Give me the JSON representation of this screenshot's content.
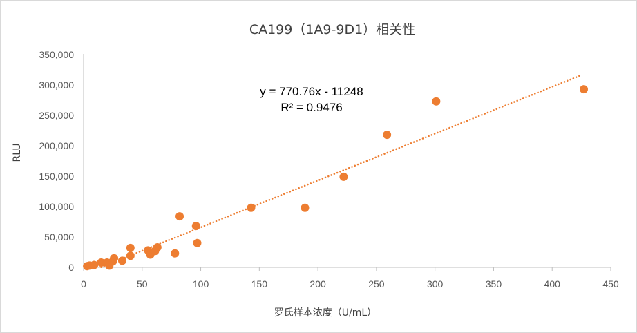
{
  "chart_data": {
    "type": "scatter",
    "title": "CA199（1A9-9D1）相关性",
    "xlabel": "罗氏样本浓度（U/mL）",
    "ylabel": "RLU",
    "xlim": [
      0,
      450
    ],
    "ylim": [
      0,
      350000
    ],
    "x_ticks": [
      "0",
      "50",
      "100",
      "150",
      "200",
      "250",
      "300",
      "350",
      "400",
      "450"
    ],
    "y_ticks": [
      "0",
      "50,000",
      "100,000",
      "150,000",
      "200,000",
      "250,000",
      "300,000",
      "350,000"
    ],
    "grid": false,
    "marker_color": "#ED7D31",
    "trendline": {
      "type": "linear",
      "slope": 770.76,
      "intercept": -11248,
      "x_range": [
        15,
        425
      ],
      "style": "dotted",
      "color": "#ED7D31",
      "equation": "y = 770.76x - 11248",
      "r2": "R² = 0.9476"
    },
    "points": [
      {
        "x": 3,
        "y": 2000
      },
      {
        "x": 5,
        "y": 3000
      },
      {
        "x": 9,
        "y": 4000
      },
      {
        "x": 15,
        "y": 8000
      },
      {
        "x": 20,
        "y": 8000
      },
      {
        "x": 22,
        "y": 3000
      },
      {
        "x": 25,
        "y": 10000
      },
      {
        "x": 26,
        "y": 15000
      },
      {
        "x": 33,
        "y": 11000
      },
      {
        "x": 40,
        "y": 19000
      },
      {
        "x": 40,
        "y": 32000
      },
      {
        "x": 55,
        "y": 28000
      },
      {
        "x": 57,
        "y": 21000
      },
      {
        "x": 61,
        "y": 27000
      },
      {
        "x": 63,
        "y": 33000
      },
      {
        "x": 78,
        "y": 23000
      },
      {
        "x": 82,
        "y": 84000
      },
      {
        "x": 96,
        "y": 68000
      },
      {
        "x": 97,
        "y": 40000
      },
      {
        "x": 143,
        "y": 98000
      },
      {
        "x": 189,
        "y": 98000
      },
      {
        "x": 222,
        "y": 149000
      },
      {
        "x": 259,
        "y": 218000
      },
      {
        "x": 301,
        "y": 273000
      },
      {
        "x": 427,
        "y": 293000
      }
    ]
  }
}
